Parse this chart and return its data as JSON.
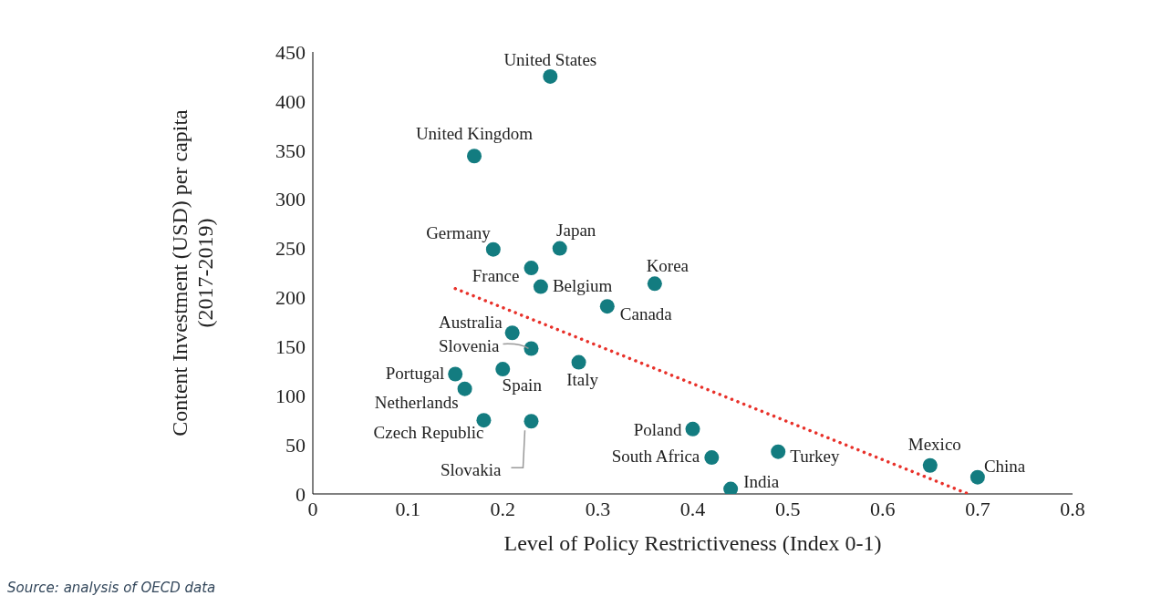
{
  "chart_data": {
    "type": "scatter",
    "xlabel": "Level of Policy Restrictiveness (Index 0-1)",
    "ylabel": "Content Investment (USD) per capita\n(2017-2019)",
    "xlim": [
      0,
      0.8
    ],
    "xticks": [
      0,
      0.1,
      0.2,
      0.3,
      0.4,
      0.5,
      0.6,
      0.7,
      0.8
    ],
    "ylim": [
      0,
      450
    ],
    "yticks": [
      0,
      50,
      100,
      150,
      200,
      250,
      300,
      350,
      400,
      450
    ],
    "series": [
      {
        "marker": "circle",
        "color": "#137c80",
        "x": [
          0.25,
          0.17,
          0.19,
          0.26,
          0.23,
          0.24,
          0.36,
          0.31,
          0.21,
          0.23,
          0.28,
          0.2,
          0.15,
          0.16,
          0.18,
          0.23,
          0.4,
          0.42,
          0.49,
          0.44,
          0.65,
          0.7
        ],
        "values": [
          425,
          344,
          249,
          250,
          230,
          211,
          214,
          191,
          164,
          148,
          134,
          127,
          122,
          107,
          75,
          74,
          66,
          37,
          43,
          5,
          29,
          17
        ]
      },
      {
        "type": "line",
        "marker": "none",
        "color": "#e8312a",
        "line_style": "dotted",
        "x": [
          0.15,
          0.69
        ],
        "values": [
          209,
          0
        ]
      }
    ],
    "annotations": [
      {
        "text": "United States",
        "x": 0.25,
        "y": 425
      },
      {
        "text": "United Kingdom",
        "x": 0.17,
        "y": 344
      },
      {
        "text": "Germany",
        "x": 0.19,
        "y": 249
      },
      {
        "text": "Japan",
        "x": 0.26,
        "y": 250
      },
      {
        "text": "France",
        "x": 0.23,
        "y": 230
      },
      {
        "text": "Belgium",
        "x": 0.24,
        "y": 211
      },
      {
        "text": "Korea",
        "x": 0.36,
        "y": 214
      },
      {
        "text": "Canada",
        "x": 0.31,
        "y": 191
      },
      {
        "text": "Australia",
        "x": 0.21,
        "y": 164
      },
      {
        "text": "Slovenia",
        "x": 0.23,
        "y": 148
      },
      {
        "text": "Italy",
        "x": 0.28,
        "y": 134
      },
      {
        "text": "Spain",
        "x": 0.2,
        "y": 127
      },
      {
        "text": "Portugal",
        "x": 0.15,
        "y": 122
      },
      {
        "text": "Netherlands",
        "x": 0.16,
        "y": 107
      },
      {
        "text": "Czech Republic",
        "x": 0.18,
        "y": 75
      },
      {
        "text": "Slovakia",
        "x": 0.23,
        "y": 74
      },
      {
        "text": "Poland",
        "x": 0.4,
        "y": 66
      },
      {
        "text": "South Africa",
        "x": 0.42,
        "y": 37
      },
      {
        "text": "Turkey",
        "x": 0.49,
        "y": 43
      },
      {
        "text": "India",
        "x": 0.44,
        "y": 5
      },
      {
        "text": "Mexico",
        "x": 0.65,
        "y": 29
      },
      {
        "text": "China",
        "x": 0.7,
        "y": 17
      },
      "Source: analysis of OECD data"
    ]
  }
}
